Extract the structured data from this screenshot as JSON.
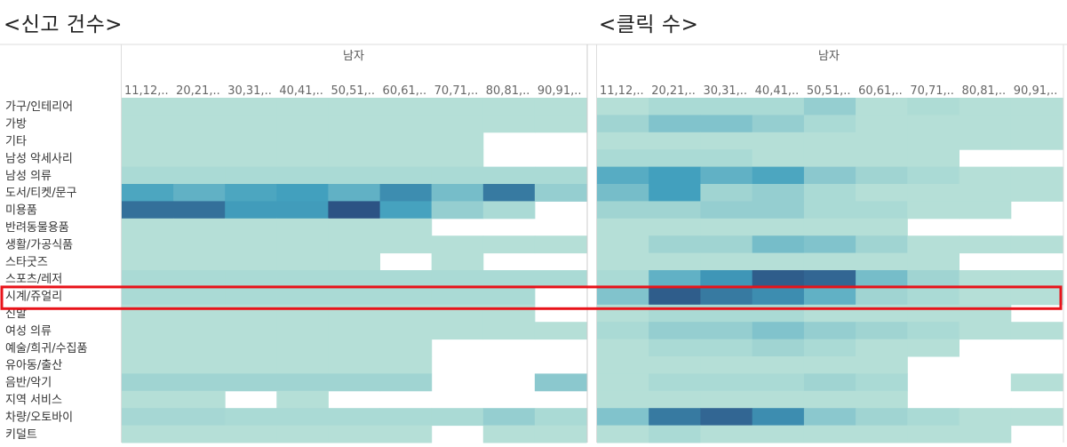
{
  "chart_data": [
    {
      "type": "heatmap",
      "title": "<신고 건수>",
      "header": "남자",
      "columns": [
        "11,12,..",
        "20,21,..",
        "30,31,..",
        "40,41,..",
        "50,51,..",
        "60,61,..",
        "70,71,..",
        "80,81,..",
        "90,91,.."
      ],
      "rows": [
        "가구/인테리어",
        "가방",
        "기타",
        "남성 악세사리",
        "남성 의류",
        "도서/티켓/문구",
        "미용품",
        "반려동물용품",
        "생활/가공식품",
        "스타굿즈",
        "스포츠/레저",
        "시계/쥬얼리",
        "신발",
        "여성 의류",
        "예술/희귀/수집품",
        "유아동/출산",
        "음반/악기",
        "지역 서비스",
        "차량/오토바이",
        "키덜트"
      ],
      "values": [
        [
          0.05,
          0.05,
          0.05,
          0.05,
          0.05,
          0.05,
          0.05,
          0.05,
          0.05
        ],
        [
          0.05,
          0.05,
          0.05,
          0.05,
          0.05,
          0.05,
          0.05,
          0.05,
          0.05
        ],
        [
          0.05,
          0.05,
          0.05,
          0.05,
          0.05,
          0.05,
          0.05,
          null,
          null
        ],
        [
          0.05,
          0.05,
          0.05,
          0.05,
          0.05,
          0.05,
          0.05,
          null,
          null
        ],
        [
          0.1,
          0.1,
          0.1,
          0.1,
          0.1,
          0.1,
          0.1,
          0.1,
          0.1
        ],
        [
          0.55,
          0.45,
          0.55,
          0.6,
          0.45,
          0.7,
          0.35,
          0.8,
          0.2
        ],
        [
          0.85,
          0.85,
          0.62,
          0.62,
          1.0,
          0.58,
          0.2,
          0.1,
          null
        ],
        [
          0.05,
          0.05,
          0.05,
          0.05,
          0.05,
          0.05,
          null,
          null,
          null
        ],
        [
          0.05,
          0.05,
          0.05,
          0.05,
          0.05,
          0.05,
          0.05,
          0.05,
          0.05
        ],
        [
          0.05,
          0.05,
          0.05,
          0.05,
          0.05,
          null,
          0.05,
          null,
          null
        ],
        [
          0.1,
          0.1,
          0.1,
          0.1,
          0.1,
          0.1,
          0.1,
          0.1,
          0.1
        ],
        [
          0.1,
          0.1,
          0.1,
          0.1,
          0.1,
          0.1,
          0.1,
          0.1,
          null
        ],
        [
          0.05,
          0.05,
          0.05,
          0.05,
          0.05,
          0.05,
          0.05,
          0.05,
          null
        ],
        [
          0.05,
          0.05,
          0.05,
          0.05,
          0.05,
          0.05,
          0.05,
          0.05,
          0.05
        ],
        [
          0.05,
          0.05,
          0.05,
          0.05,
          0.05,
          0.05,
          null,
          null,
          null
        ],
        [
          0.05,
          0.05,
          0.05,
          0.05,
          0.05,
          0.05,
          null,
          null,
          null
        ],
        [
          0.15,
          0.15,
          0.15,
          0.15,
          0.15,
          0.15,
          null,
          null,
          0.25
        ],
        [
          0.05,
          0.05,
          null,
          0.05,
          null,
          null,
          null,
          null,
          null
        ],
        [
          0.12,
          0.12,
          0.1,
          0.1,
          0.1,
          0.1,
          0.1,
          0.2,
          0.1
        ],
        [
          0.05,
          0.05,
          0.05,
          0.05,
          0.05,
          0.05,
          null,
          0.05,
          0.05
        ]
      ],
      "highlight_row": "시계/쥬얼리"
    },
    {
      "type": "heatmap",
      "title": "<클릭 수>",
      "header": "남자",
      "columns": [
        "11,12,..",
        "20,21,..",
        "30,31,..",
        "40,41,..",
        "50,51,..",
        "60,61,..",
        "70,71,..",
        "80,81,..",
        "90,91,.."
      ],
      "rows": [
        "가구/인테리어",
        "가방",
        "기타",
        "남성 악세사리",
        "남성 의류",
        "도서/티켓/문구",
        "미용품",
        "반려동물용품",
        "생활/가공식품",
        "스타굿즈",
        "스포츠/레저",
        "시계/쥬얼리",
        "신발",
        "여성 의류",
        "예술/희귀/수집품",
        "유아동/출산",
        "음반/악기",
        "지역 서비스",
        "차량/오토바이",
        "키덜트"
      ],
      "values": [
        [
          0.05,
          0.1,
          0.1,
          0.1,
          0.2,
          0.05,
          0.08,
          0.05,
          0.05
        ],
        [
          0.15,
          0.3,
          0.3,
          0.2,
          0.1,
          0.05,
          0.05,
          0.05,
          0.05
        ],
        [
          0.05,
          0.05,
          0.05,
          0.05,
          0.05,
          0.05,
          0.05,
          0.05,
          0.05
        ],
        [
          0.1,
          0.1,
          0.1,
          0.05,
          0.05,
          0.05,
          0.05,
          null,
          null
        ],
        [
          0.5,
          0.6,
          0.45,
          0.55,
          0.25,
          0.15,
          0.1,
          0.05,
          0.05
        ],
        [
          0.35,
          0.6,
          0.15,
          0.2,
          0.1,
          0.05,
          0.05,
          0.05,
          0.05
        ],
        [
          0.15,
          0.15,
          0.2,
          0.2,
          0.1,
          0.1,
          0.05,
          0.05,
          null
        ],
        [
          0.05,
          0.05,
          0.05,
          0.05,
          0.05,
          0.05,
          null,
          null,
          null
        ],
        [
          0.05,
          0.15,
          0.15,
          0.35,
          0.3,
          0.15,
          0.05,
          0.05,
          0.05
        ],
        [
          0.05,
          0.05,
          0.05,
          0.05,
          0.05,
          0.05,
          0.05,
          null,
          null
        ],
        [
          0.1,
          0.45,
          0.65,
          0.95,
          0.9,
          0.35,
          0.15,
          0.05,
          0.05
        ],
        [
          0.3,
          0.95,
          0.8,
          0.7,
          0.45,
          0.15,
          0.1,
          0.05,
          0.05
        ],
        [
          0.05,
          0.1,
          0.1,
          0.1,
          0.05,
          0.05,
          0.05,
          0.05,
          null
        ],
        [
          0.1,
          0.2,
          0.2,
          0.3,
          0.2,
          0.15,
          0.1,
          0.05,
          0.05
        ],
        [
          0.05,
          0.1,
          0.1,
          0.15,
          0.1,
          0.05,
          0.05,
          null,
          null
        ],
        [
          0.05,
          0.05,
          0.05,
          0.05,
          0.05,
          0.05,
          null,
          null,
          null
        ],
        [
          0.05,
          0.1,
          0.1,
          0.1,
          0.15,
          0.1,
          null,
          null,
          0.05
        ],
        [
          0.05,
          0.05,
          0.05,
          0.05,
          0.05,
          0.05,
          null,
          null,
          null
        ],
        [
          0.3,
          0.8,
          0.9,
          0.7,
          0.25,
          0.15,
          0.1,
          0.05,
          0.05
        ],
        [
          0.05,
          0.1,
          0.05,
          0.05,
          0.05,
          0.05,
          0.05,
          0.05,
          null
        ]
      ],
      "highlight_row": "시계/쥬얼리"
    }
  ],
  "colors": {
    "scale_low": "#bfe5d9",
    "scale_mid": "#42a0be",
    "scale_high": "#2c5384",
    "highlight_border": "#e8131a",
    "grid_line": "#dddddd"
  }
}
